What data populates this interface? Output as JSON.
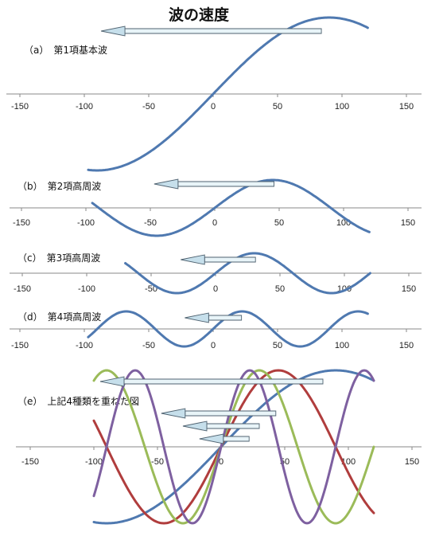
{
  "title": "波の速度",
  "colors": {
    "fundamental": "#4f79b0",
    "second": "#4f79b0",
    "third": "#4f79b0",
    "fourth": "#4f79b0",
    "combined_1": "#4f79b0",
    "combined_2": "#b03d3d",
    "combined_3": "#9bbb59",
    "combined_4": "#7e60a0",
    "axis": "#8a8a8a"
  },
  "chart_data": [
    {
      "type": "line",
      "label": "（a）　第1項基本波",
      "xlim": [
        -150,
        150
      ],
      "ticks": [
        -150,
        -100,
        -50,
        0,
        50,
        100,
        150
      ],
      "x_range": [
        -97,
        120
      ],
      "series": [
        {
          "amplitude": 1,
          "period": 360,
          "color_key": "fundamental"
        }
      ],
      "arrows": [
        {
          "from_x": 84,
          "to_x": -87
        }
      ]
    },
    {
      "type": "line",
      "label": "（b）　第2項高周波",
      "xlim": [
        -150,
        150
      ],
      "ticks": [
        -150,
        -100,
        -50,
        0,
        50,
        100,
        150
      ],
      "x_range": [
        -95,
        120
      ],
      "series": [
        {
          "amplitude": 1,
          "period": 180,
          "color_key": "second"
        }
      ],
      "arrows": [
        {
          "from_x": 46,
          "to_x": -47
        }
      ]
    },
    {
      "type": "line",
      "label": "（c）　第3項高周波",
      "xlim": [
        -150,
        150
      ],
      "ticks": [
        -150,
        -100,
        -50,
        0,
        50,
        100,
        150
      ],
      "x_range": [
        -70,
        120
      ],
      "series": [
        {
          "amplitude": 1,
          "period": 120,
          "color_key": "third"
        }
      ],
      "arrows": [
        {
          "from_x": 31,
          "to_x": -27
        }
      ]
    },
    {
      "type": "line",
      "label": "（d）　第4項高周波",
      "xlim": [
        -150,
        150
      ],
      "ticks": [
        -150,
        -100,
        -50,
        0,
        50,
        100,
        150
      ],
      "x_range": [
        -97,
        120
      ],
      "series": [
        {
          "amplitude": 1,
          "period": 90,
          "color_key": "fourth"
        }
      ],
      "arrows": [
        {
          "from_x": 22,
          "to_x": -22
        }
      ]
    },
    {
      "type": "line",
      "label": "（e）　上記4種類を重ねた図",
      "xlim": [
        -150,
        150
      ],
      "ticks": [
        -150,
        -100,
        -50,
        0,
        50,
        100,
        150
      ],
      "x_range": [
        -100,
        120
      ],
      "series": [
        {
          "amplitude": 1,
          "period": 360,
          "color_key": "combined_1"
        },
        {
          "amplitude": 1,
          "period": 180,
          "color_key": "combined_2"
        },
        {
          "amplitude": 1,
          "period": 120,
          "color_key": "combined_3"
        },
        {
          "amplitude": 1,
          "period": 90,
          "color_key": "combined_4"
        }
      ],
      "arrows": [
        {
          "from_x": 80,
          "to_x": -95
        },
        {
          "from_x": 43,
          "to_x": -47
        },
        {
          "from_x": 30,
          "to_x": -30
        },
        {
          "from_x": 22,
          "to_x": -17
        }
      ]
    }
  ]
}
